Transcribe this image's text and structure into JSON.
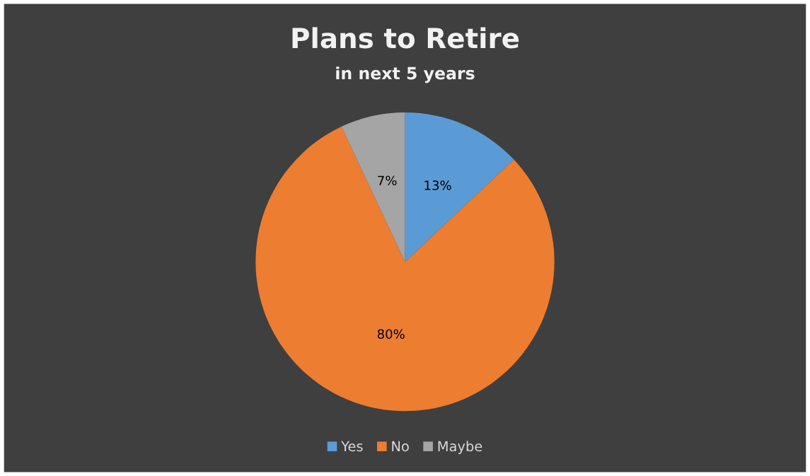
{
  "chart_data": {
    "type": "pie",
    "title": "Plans to Retire",
    "subtitle": "in next 5 years",
    "categories": [
      "Yes",
      "No",
      "Maybe"
    ],
    "values": [
      13,
      80,
      7
    ],
    "value_labels": [
      "13%",
      "80%",
      "7%"
    ],
    "colors": [
      "#5b9bd5",
      "#ed7d31",
      "#a5a5a5"
    ],
    "legend": "bottom"
  }
}
